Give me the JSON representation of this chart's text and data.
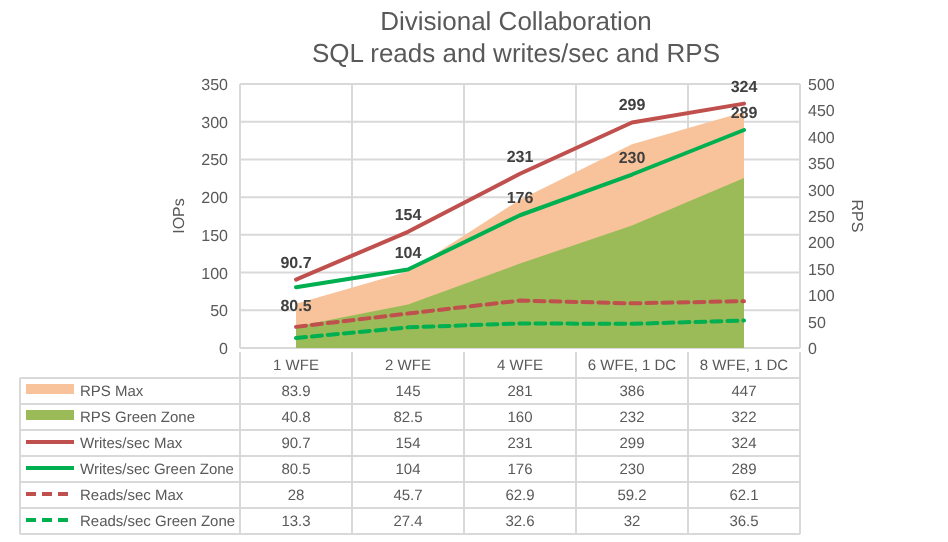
{
  "chart_data": {
    "type": "line",
    "title": "Divisional Collaboration",
    "subtitle": "SQL reads and writes/sec and RPS",
    "ylabel": "IOPs",
    "y2label": "RPS",
    "categories": [
      "1 WFE",
      "2 WFE",
      "4 WFE",
      "6 WFE, 1 DC",
      "8 WFE, 1 DC"
    ],
    "series": [
      {
        "name": "RPS Max",
        "type": "area",
        "axis": "y2",
        "color": "#f8c39b",
        "values": [
          83.9,
          145,
          281,
          386,
          447
        ]
      },
      {
        "name": "RPS Green Zone",
        "type": "area",
        "axis": "y2",
        "color": "#9bbb59",
        "values": [
          40.8,
          82.5,
          160,
          232,
          322
        ]
      },
      {
        "name": "Writes/sec Max",
        "color": "#c0504d",
        "line_style": "solid",
        "values": [
          90.7,
          154,
          231,
          299,
          324
        ]
      },
      {
        "name": "Writes/sec Green Zone",
        "color": "#00b050",
        "line_style": "solid",
        "values": [
          80.5,
          104,
          176,
          230,
          289
        ]
      },
      {
        "name": "Reads/sec Max",
        "color": "#c0504d",
        "line_style": "dashed",
        "values": [
          28,
          45.7,
          62.9,
          59.2,
          62.1
        ]
      },
      {
        "name": "Reads/sec Green Zone",
        "color": "#00b050",
        "line_style": "dashed",
        "values": [
          13.3,
          27.4,
          32.6,
          32,
          36.5
        ]
      }
    ],
    "ylim": [
      0,
      350
    ],
    "yticks": [
      0,
      50,
      100,
      150,
      200,
      250,
      300,
      350
    ],
    "y2lim": [
      0,
      500
    ],
    "y2ticks": [
      0,
      50,
      100,
      150,
      200,
      250,
      300,
      350,
      400,
      450,
      500
    ],
    "annotations": [
      {
        "text": "90.7",
        "x": "1 WFE",
        "y": 90.7
      },
      {
        "text": "154",
        "x": "2 WFE",
        "y": 154
      },
      {
        "text": "231",
        "x": "4 WFE",
        "y": 231
      },
      {
        "text": "299",
        "x": "6 WFE, 1 DC",
        "y": 299
      },
      {
        "text": "324",
        "x": "8 WFE, 1 DC",
        "y": 324
      },
      {
        "text": "80.5",
        "x": "1 WFE",
        "y": 80.5
      },
      {
        "text": "104",
        "x": "2 WFE",
        "y": 104
      },
      {
        "text": "176",
        "x": "4 WFE",
        "y": 176
      },
      {
        "text": "230",
        "x": "6 WFE, 1 DC",
        "y": 230
      },
      {
        "text": "289",
        "x": "8 WFE, 1 DC",
        "y": 289
      }
    ],
    "grid": true,
    "legend": "bottom",
    "data_labels": true,
    "marker": "none"
  }
}
